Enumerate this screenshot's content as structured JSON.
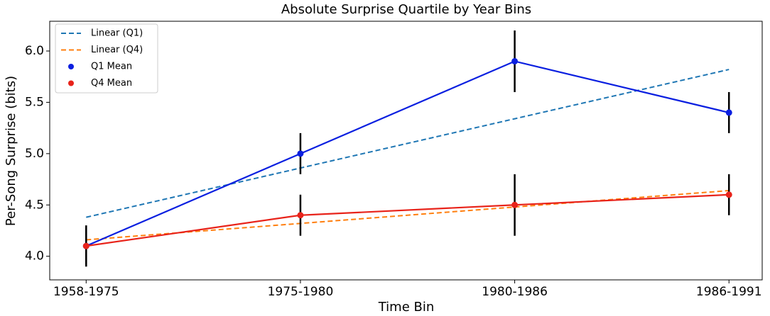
{
  "chart_data": {
    "type": "line",
    "title": "Absolute Surprise Quartile by Year Bins",
    "x_label": "Time Bin",
    "y_label": "Per-Song Surprise (bits)",
    "categories": [
      "1958-1975",
      "1975-1980",
      "1980-1986",
      "1986-1991"
    ],
    "ylim": [
      3.77,
      6.29
    ],
    "yticks": [
      {
        "value": 4,
        "label": "4.0"
      },
      4.5,
      {
        "value": 5,
        "label": "5.0"
      },
      5.5,
      {
        "value": 6,
        "label": "6.0"
      }
    ],
    "legend": "upper-left",
    "error_color": "#000000",
    "series": [
      {
        "name": "Linear (Q1)",
        "color": "#1f77b4",
        "linestyle": "dashed",
        "markers": false,
        "values": [
          4.38,
          4.86,
          5.34,
          5.82
        ]
      },
      {
        "name": "Linear (Q4)",
        "color": "#ff7f0e",
        "linestyle": "dashed",
        "markers": false,
        "values": [
          4.16,
          4.32,
          4.48,
          4.64
        ]
      },
      {
        "name": "Q1 Mean",
        "color": "#0a1fe0",
        "linestyle": "solid",
        "markers": true,
        "values": [
          4.1,
          5.0,
          5.9,
          5.4
        ],
        "errors": [
          0.2,
          0.2,
          0.3,
          0.2
        ]
      },
      {
        "name": "Q4 Mean",
        "color": "#e8231a",
        "linestyle": "solid",
        "markers": true,
        "values": [
          4.1,
          4.4,
          4.5,
          4.6
        ],
        "errors": [
          0.2,
          0.2,
          0.3,
          0.2
        ]
      }
    ]
  }
}
